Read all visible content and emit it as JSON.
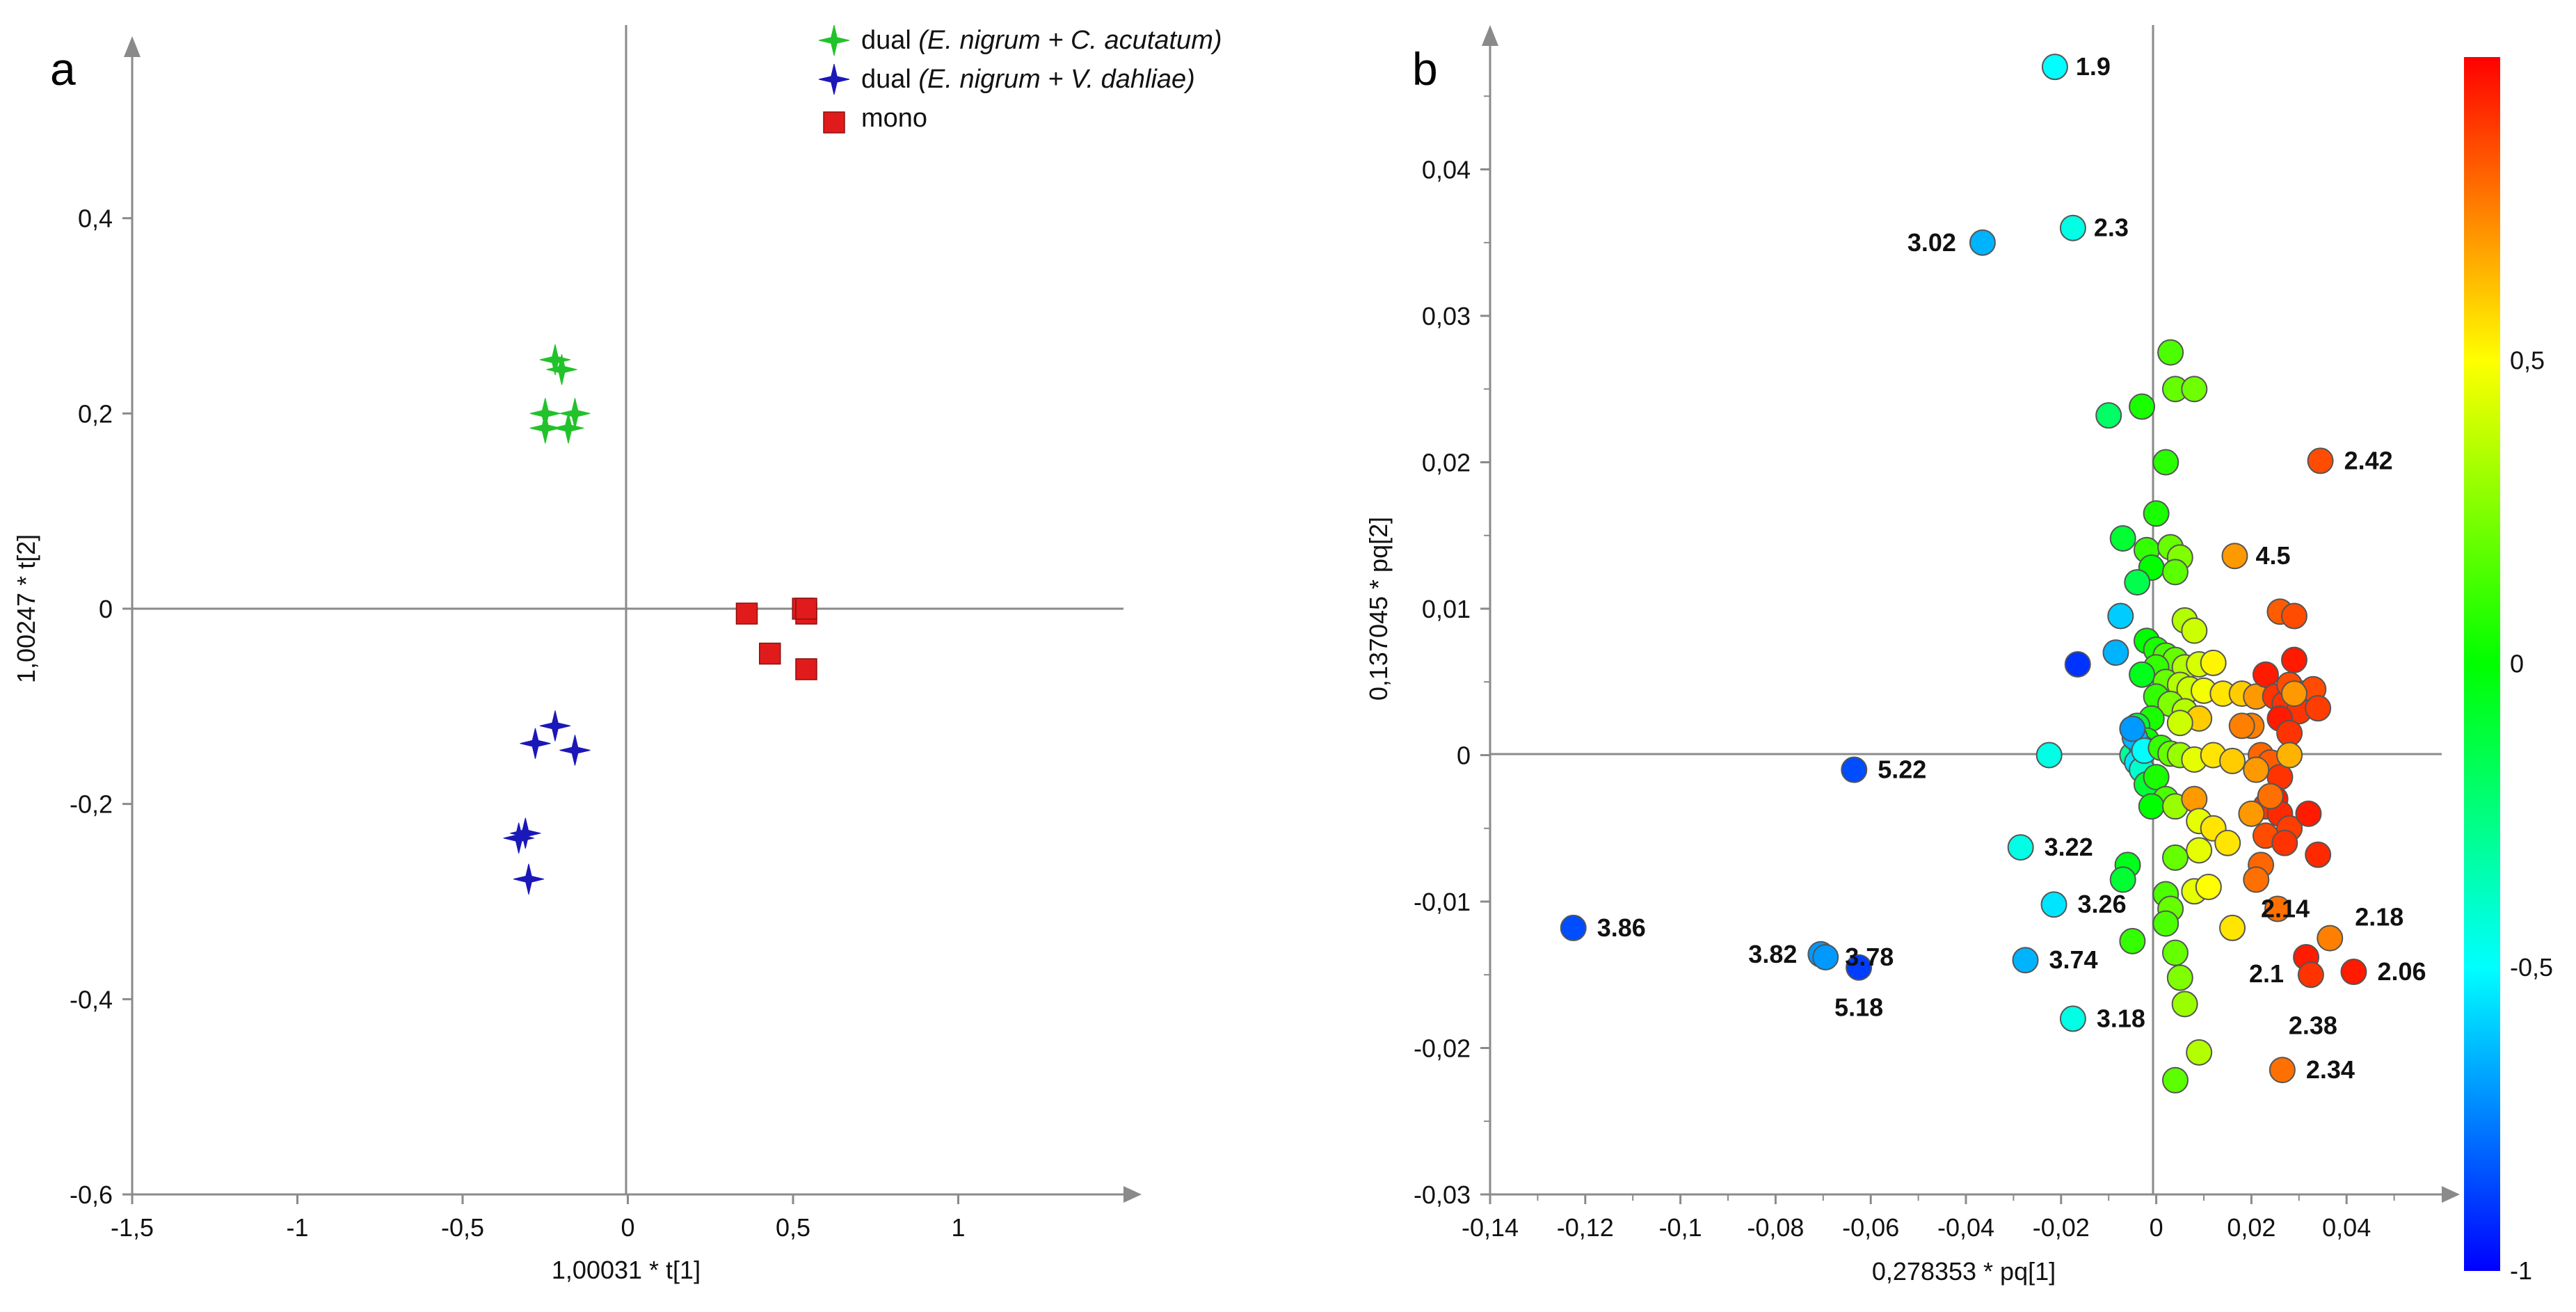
{
  "panels": {
    "a": {
      "letter": "a"
    },
    "b": {
      "letter": "b"
    }
  },
  "chart_data": [
    {
      "type": "scatter",
      "panel": "a",
      "xlabel": "1,00031 * t[1]",
      "ylabel": "1,00247 * t[2]",
      "xlim": [
        -1.5,
        1.5
      ],
      "ylim": [
        -0.6,
        0.6
      ],
      "xticks": [
        -1.5,
        -1,
        -0.5,
        0,
        0.5,
        1
      ],
      "xtick_labels": [
        "-1,5",
        "-1",
        "-0,5",
        "0",
        "0,5",
        "1"
      ],
      "yticks": [
        -0.6,
        -0.4,
        -0.2,
        0,
        0.2,
        0.4
      ],
      "ytick_labels": [
        "-0,6",
        "-0,4",
        "-0,2",
        "0",
        "0,2",
        "0,4"
      ],
      "grid": false,
      "legend_position": "top-right",
      "series": [
        {
          "name": "dual (E. nigrum + C. acutatum)",
          "name_plain": "dual ",
          "name_italic": "(E. nigrum + C. acutatum)",
          "color": "#22c22a",
          "marker": "star4",
          "points": [
            [
              -0.22,
              0.255
            ],
            [
              -0.2,
              0.245
            ],
            [
              -0.25,
              0.2
            ],
            [
              -0.25,
              0.185
            ],
            [
              -0.16,
              0.2
            ],
            [
              -0.18,
              0.185
            ]
          ]
        },
        {
          "name": "dual (E. nigrum + V. dahliae)",
          "name_plain": "dual ",
          "name_italic": "(E. nigrum + V. dahliae)",
          "color": "#1a18b8",
          "marker": "star4",
          "points": [
            [
              -0.22,
              -0.12
            ],
            [
              -0.28,
              -0.138
            ],
            [
              -0.16,
              -0.145
            ],
            [
              -0.31,
              -0.23
            ],
            [
              -0.33,
              -0.235
            ],
            [
              -0.3,
              -0.277
            ]
          ]
        },
        {
          "name": "mono",
          "name_plain": "mono",
          "name_italic": "",
          "color": "#e11b1b",
          "marker": "square",
          "points": [
            [
              0.36,
              -0.005
            ],
            [
              0.53,
              0.0
            ],
            [
              0.54,
              -0.005
            ],
            [
              0.54,
              0.0
            ],
            [
              0.43,
              -0.046
            ],
            [
              0.54,
              -0.062
            ]
          ]
        }
      ]
    },
    {
      "type": "scatter",
      "panel": "b",
      "xlabel": "0,278353 * pq[1]",
      "ylabel": "0,137045 * pq[2]",
      "xlim": [
        -0.14,
        0.06
      ],
      "ylim": [
        -0.03,
        0.05
      ],
      "xticks": [
        -0.14,
        -0.12,
        -0.1,
        -0.08,
        -0.06,
        -0.04,
        -0.02,
        0,
        0.02,
        0.04
      ],
      "xtick_labels": [
        "-0,14",
        "-0,12",
        "-0,1",
        "-0,08",
        "-0,06",
        "-0,04",
        "-0,02",
        "0",
        "0,02",
        "0,04"
      ],
      "yticks": [
        -0.03,
        -0.02,
        -0.01,
        0,
        0.01,
        0.02,
        0.03,
        0.04
      ],
      "ytick_labels": [
        "-0,03",
        "-0,02",
        "-0,01",
        "0",
        "0,01",
        "0,02",
        "0,03",
        "0,04"
      ],
      "grid": false,
      "colorbar": {
        "min": -1,
        "max": 1,
        "ticks": [
          1,
          0.5,
          0,
          -0.5,
          -1
        ],
        "tick_labels": [
          "",
          "0,5",
          "0",
          "-0,5",
          "-1"
        ],
        "stops": [
          "#0000ff",
          "#00ffff",
          "#00ff00",
          "#ffff00",
          "#ff0000"
        ]
      },
      "labeled_points": [
        {
          "label": "1.9",
          "x": -0.0213,
          "y": 0.047,
          "c": -0.5
        },
        {
          "label": "2.3",
          "x": -0.0175,
          "y": 0.036,
          "c": -0.45
        },
        {
          "label": "3.02",
          "x": -0.0365,
          "y": 0.035,
          "c": -0.65
        },
        {
          "label": "2.42",
          "x": 0.0345,
          "y": 0.0201,
          "c": 0.85
        },
        {
          "label": "4.5",
          "x": 0.0165,
          "y": 0.0136,
          "c": 0.7
        },
        {
          "label": "5.22",
          "x": -0.0635,
          "y": -0.001,
          "c": -0.85
        },
        {
          "label": "3.22",
          "x": -0.0285,
          "y": -0.0063,
          "c": -0.45
        },
        {
          "label": "3.26",
          "x": -0.0215,
          "y": -0.0102,
          "c": -0.55
        },
        {
          "label": "3.86",
          "x": -0.1225,
          "y": -0.0118,
          "c": -0.85
        },
        {
          "label": "3.82",
          "x": -0.0705,
          "y": -0.0136,
          "c": -0.7
        },
        {
          "label": "3.78",
          "x": -0.0695,
          "y": -0.0138,
          "c": -0.7
        },
        {
          "label": "5.18",
          "x": -0.0625,
          "y": -0.0145,
          "c": -0.88
        },
        {
          "label": "3.74",
          "x": -0.0275,
          "y": -0.014,
          "c": -0.65
        },
        {
          "label": "3.18",
          "x": -0.0175,
          "y": -0.018,
          "c": -0.45
        },
        {
          "label": "2.14",
          "x": 0.0255,
          "y": -0.0105,
          "c": 0.78
        },
        {
          "label": "2.18",
          "x": 0.0365,
          "y": -0.0125,
          "c": 0.75
        },
        {
          "label": "2.1",
          "x": 0.0315,
          "y": -0.0138,
          "c": 0.95
        },
        {
          "label": "2.06",
          "x": 0.0415,
          "y": -0.0148,
          "c": 0.95
        },
        {
          "label": "2.38",
          "x": 0.0325,
          "y": -0.015,
          "c": 0.9
        },
        {
          "label": "2.34",
          "x": 0.0265,
          "y": -0.0215,
          "c": 0.78
        }
      ],
      "points": [
        {
          "x": 0.003,
          "y": 0.0275,
          "c": 0.15
        },
        {
          "x": 0.004,
          "y": 0.025,
          "c": 0.2
        },
        {
          "x": 0.008,
          "y": 0.025,
          "c": 0.22
        },
        {
          "x": -0.003,
          "y": 0.0238,
          "c": 0.05
        },
        {
          "x": -0.01,
          "y": 0.0232,
          "c": -0.2
        },
        {
          "x": 0.002,
          "y": 0.02,
          "c": 0.08
        },
        {
          "x": -0.0,
          "y": 0.0165,
          "c": 0.05
        },
        {
          "x": -0.007,
          "y": 0.0148,
          "c": -0.1
        },
        {
          "x": -0.002,
          "y": 0.014,
          "c": 0.1
        },
        {
          "x": 0.003,
          "y": 0.0142,
          "c": 0.2
        },
        {
          "x": 0.005,
          "y": 0.0135,
          "c": 0.25
        },
        {
          "x": -0.001,
          "y": 0.0128,
          "c": 0.0
        },
        {
          "x": 0.004,
          "y": 0.0125,
          "c": 0.18
        },
        {
          "x": -0.004,
          "y": 0.0118,
          "c": -0.15
        },
        {
          "x": -0.0075,
          "y": 0.0095,
          "c": -0.6
        },
        {
          "x": -0.0085,
          "y": 0.007,
          "c": -0.65
        },
        {
          "x": -0.0165,
          "y": 0.0062,
          "c": -0.9
        },
        {
          "x": 0.006,
          "y": 0.0092,
          "c": 0.35
        },
        {
          "x": 0.008,
          "y": 0.0085,
          "c": 0.4
        },
        {
          "x": -0.002,
          "y": 0.0078,
          "c": 0.0
        },
        {
          "x": 0.0,
          "y": 0.0072,
          "c": 0.05
        },
        {
          "x": 0.002,
          "y": 0.0068,
          "c": 0.15
        },
        {
          "x": 0.004,
          "y": 0.0065,
          "c": 0.2
        },
        {
          "x": 0.006,
          "y": 0.006,
          "c": 0.35
        },
        {
          "x": 0.009,
          "y": 0.0062,
          "c": 0.42
        },
        {
          "x": 0.012,
          "y": 0.0063,
          "c": 0.52
        },
        {
          "x": 0.0,
          "y": 0.006,
          "c": 0.1
        },
        {
          "x": -0.003,
          "y": 0.0055,
          "c": -0.05
        },
        {
          "x": 0.002,
          "y": 0.005,
          "c": 0.2
        },
        {
          "x": 0.005,
          "y": 0.0048,
          "c": 0.35
        },
        {
          "x": 0.007,
          "y": 0.0045,
          "c": 0.4
        },
        {
          "x": 0.01,
          "y": 0.0044,
          "c": 0.48
        },
        {
          "x": 0.014,
          "y": 0.0042,
          "c": 0.55
        },
        {
          "x": 0.018,
          "y": 0.0042,
          "c": 0.6
        },
        {
          "x": 0.0,
          "y": 0.004,
          "c": 0.1
        },
        {
          "x": 0.003,
          "y": 0.0035,
          "c": 0.25
        },
        {
          "x": 0.006,
          "y": 0.003,
          "c": 0.35
        },
        {
          "x": 0.009,
          "y": 0.0025,
          "c": 0.6
        },
        {
          "x": 0.005,
          "y": 0.0022,
          "c": 0.4
        },
        {
          "x": -0.001,
          "y": 0.0025,
          "c": 0.05
        },
        {
          "x": -0.004,
          "y": 0.002,
          "c": -0.1
        },
        {
          "x": -0.002,
          "y": 0.001,
          "c": 0.02
        },
        {
          "x": -0.005,
          "y": 0.0,
          "c": -0.3
        },
        {
          "x": -0.003,
          "y": 0.0005,
          "c": -0.6
        },
        {
          "x": -0.004,
          "y": -0.0005,
          "c": -0.55
        },
        {
          "x": -0.0045,
          "y": 0.0012,
          "c": -0.65
        },
        {
          "x": -0.005,
          "y": 0.0018,
          "c": -0.7
        },
        {
          "x": -0.003,
          "y": -0.001,
          "c": -0.4
        },
        {
          "x": -0.0025,
          "y": 0.0003,
          "c": -0.5
        },
        {
          "x": -0.002,
          "y": -0.002,
          "c": -0.1
        },
        {
          "x": -0.0225,
          "y": 0.0,
          "c": -0.45
        },
        {
          "x": 0.001,
          "y": 0.0005,
          "c": 0.1
        },
        {
          "x": 0.003,
          "y": 0.0001,
          "c": 0.2
        },
        {
          "x": 0.005,
          "y": 0.0,
          "c": 0.3
        },
        {
          "x": 0.008,
          "y": -0.0003,
          "c": 0.45
        },
        {
          "x": 0.012,
          "y": 0.0,
          "c": 0.55
        },
        {
          "x": 0.016,
          "y": -0.0004,
          "c": 0.6
        },
        {
          "x": 0.0,
          "y": -0.0015,
          "c": 0.05
        },
        {
          "x": 0.002,
          "y": -0.003,
          "c": 0.15
        },
        {
          "x": -0.001,
          "y": -0.0035,
          "c": 0.0
        },
        {
          "x": 0.004,
          "y": -0.0035,
          "c": 0.3
        },
        {
          "x": 0.008,
          "y": -0.003,
          "c": 0.7
        },
        {
          "x": 0.009,
          "y": -0.0045,
          "c": 0.45
        },
        {
          "x": 0.012,
          "y": -0.005,
          "c": 0.55
        },
        {
          "x": 0.015,
          "y": -0.006,
          "c": 0.55
        },
        {
          "x": 0.009,
          "y": -0.0065,
          "c": 0.45
        },
        {
          "x": 0.004,
          "y": -0.007,
          "c": 0.2
        },
        {
          "x": -0.006,
          "y": -0.0075,
          "c": -0.05
        },
        {
          "x": -0.007,
          "y": -0.0085,
          "c": -0.1
        },
        {
          "x": 0.002,
          "y": -0.0095,
          "c": 0.15
        },
        {
          "x": 0.003,
          "y": -0.0105,
          "c": 0.2
        },
        {
          "x": 0.008,
          "y": -0.0093,
          "c": 0.45
        },
        {
          "x": 0.011,
          "y": -0.009,
          "c": 0.5
        },
        {
          "x": 0.002,
          "y": -0.0115,
          "c": 0.15
        },
        {
          "x": -0.005,
          "y": -0.0127,
          "c": 0.1
        },
        {
          "x": 0.004,
          "y": -0.0135,
          "c": 0.2
        },
        {
          "x": 0.005,
          "y": -0.0152,
          "c": 0.25
        },
        {
          "x": 0.006,
          "y": -0.017,
          "c": 0.3
        },
        {
          "x": 0.009,
          "y": -0.0203,
          "c": 0.35
        },
        {
          "x": 0.004,
          "y": -0.0222,
          "c": 0.18
        },
        {
          "x": 0.016,
          "y": -0.0118,
          "c": 0.55
        },
        {
          "x": 0.021,
          "y": 0.004,
          "c": 0.7
        },
        {
          "x": 0.023,
          "y": 0.0055,
          "c": 0.95
        },
        {
          "x": 0.025,
          "y": 0.004,
          "c": 0.9
        },
        {
          "x": 0.027,
          "y": 0.0035,
          "c": 0.9
        },
        {
          "x": 0.028,
          "y": 0.0048,
          "c": 0.85
        },
        {
          "x": 0.029,
          "y": 0.0065,
          "c": 0.95
        },
        {
          "x": 0.031,
          "y": 0.0042,
          "c": 0.9
        },
        {
          "x": 0.033,
          "y": 0.0045,
          "c": 0.85
        },
        {
          "x": 0.03,
          "y": 0.003,
          "c": 0.9
        },
        {
          "x": 0.034,
          "y": 0.0032,
          "c": 0.88
        },
        {
          "x": 0.026,
          "y": 0.0025,
          "c": 0.95
        },
        {
          "x": 0.028,
          "y": 0.0015,
          "c": 0.9
        },
        {
          "x": 0.026,
          "y": 0.0098,
          "c": 0.82
        },
        {
          "x": 0.029,
          "y": 0.0095,
          "c": 0.85
        },
        {
          "x": 0.029,
          "y": 0.0042,
          "c": 0.7
        },
        {
          "x": 0.02,
          "y": 0.002,
          "c": 0.75
        },
        {
          "x": 0.022,
          "y": 0.0,
          "c": 0.8
        },
        {
          "x": 0.024,
          "y": -0.0005,
          "c": 0.82
        },
        {
          "x": 0.026,
          "y": -0.0015,
          "c": 0.9
        },
        {
          "x": 0.028,
          "y": 0.0,
          "c": 0.65
        },
        {
          "x": 0.025,
          "y": -0.003,
          "c": 0.95
        },
        {
          "x": 0.023,
          "y": -0.0035,
          "c": 0.9
        },
        {
          "x": 0.026,
          "y": -0.004,
          "c": 0.92
        },
        {
          "x": 0.028,
          "y": -0.005,
          "c": 0.88
        },
        {
          "x": 0.023,
          "y": -0.0055,
          "c": 0.85
        },
        {
          "x": 0.027,
          "y": -0.006,
          "c": 0.9
        },
        {
          "x": 0.032,
          "y": -0.004,
          "c": 0.95
        },
        {
          "x": 0.034,
          "y": -0.0068,
          "c": 0.92
        },
        {
          "x": 0.022,
          "y": -0.0075,
          "c": 0.8
        },
        {
          "x": 0.021,
          "y": -0.0085,
          "c": 0.78
        },
        {
          "x": 0.024,
          "y": -0.0028,
          "c": 0.78
        },
        {
          "x": 0.021,
          "y": -0.001,
          "c": 0.7
        },
        {
          "x": 0.018,
          "y": 0.002,
          "c": 0.75
        },
        {
          "x": 0.02,
          "y": -0.004,
          "c": 0.7
        }
      ]
    }
  ]
}
